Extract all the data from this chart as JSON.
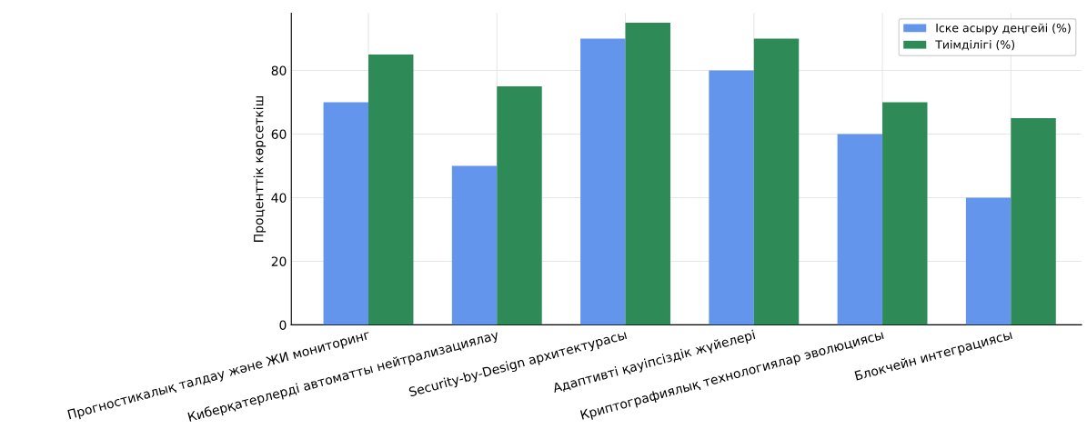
{
  "chart_data": {
    "type": "bar",
    "ylabel": "Проценттік көрсеткіш",
    "categories": [
      "Прогностикалық талдау және ЖИ мониторинг",
      "Киберқатерлерді автоматты нейтрализациялау",
      "Security-by-Design архитектурасы",
      "Адаптивті қауіпсіздік жүйелері",
      "Криптографиялық технологиялар эволюциясы",
      "Блокчейн интеграциясы"
    ],
    "series": [
      {
        "name": "Іске асыру деңгейі (%)",
        "color": "#6495ed",
        "values": [
          70,
          50,
          90,
          80,
          60,
          40
        ]
      },
      {
        "name": "Тиімділігі (%)",
        "color": "#2e8b57",
        "values": [
          85,
          75,
          95,
          90,
          70,
          65
        ]
      }
    ],
    "ylim": [
      0,
      98
    ],
    "yticks": [
      0,
      20,
      40,
      60,
      80
    ],
    "grid": true,
    "legend": "top right"
  }
}
